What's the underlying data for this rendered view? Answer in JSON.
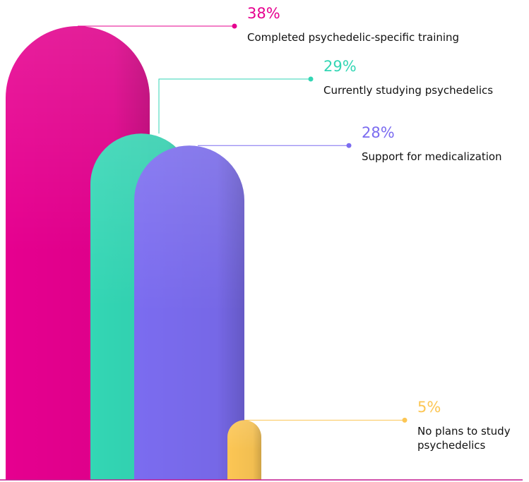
{
  "chart_data": {
    "type": "bar",
    "categories": [
      "Completed psychedelic-specific training",
      "Currently studying psychedelics",
      "Support for medicalization",
      "No plans to study psychedelics"
    ],
    "values": [
      38,
      29,
      28,
      5
    ],
    "value_labels": [
      "38%",
      "29%",
      "28%",
      "5%"
    ],
    "colors": [
      "#e6008f",
      "#33d6b4",
      "#7b6cf0",
      "#fcc654"
    ],
    "baseline_color": "#c2188f"
  }
}
